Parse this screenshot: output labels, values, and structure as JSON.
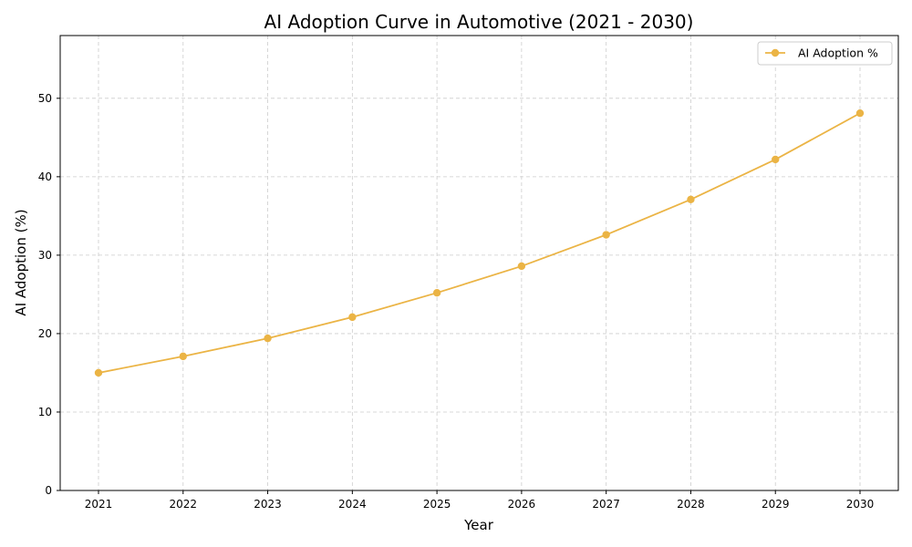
{
  "chart_data": {
    "type": "line",
    "title": "AI Adoption Curve in Automotive (2021 - 2030)",
    "xlabel": "Year",
    "ylabel": "AI Adoption (%)",
    "x": [
      "2021",
      "2022",
      "2023",
      "2024",
      "2025",
      "2026",
      "2027",
      "2028",
      "2029",
      "2030"
    ],
    "yticks": [
      0,
      10,
      20,
      30,
      40,
      50
    ],
    "ylim": [
      0,
      58
    ],
    "grid": true,
    "legend_position": "top-right",
    "series": [
      {
        "name": "AI Adoption %",
        "color": "#EBB445",
        "marker": "circle",
        "values": [
          15.0,
          17.1,
          19.4,
          22.1,
          25.2,
          28.6,
          32.6,
          37.1,
          42.2,
          48.1
        ]
      }
    ]
  }
}
